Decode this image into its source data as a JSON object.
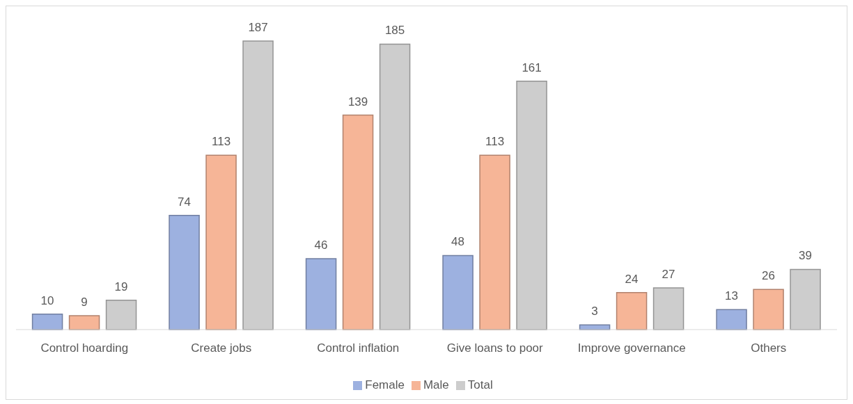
{
  "chart_data": {
    "type": "bar",
    "categories": [
      "Control hoarding",
      "Create jobs",
      "Control inflation",
      "Give loans to poor",
      "Improve governance",
      "Others"
    ],
    "series": [
      {
        "name": "Female",
        "color": "#9db1e0",
        "values": [
          10,
          74,
          46,
          48,
          3,
          13
        ]
      },
      {
        "name": "Male",
        "color": "#f6b597",
        "values": [
          9,
          113,
          139,
          113,
          24,
          26
        ]
      },
      {
        "name": "Total",
        "color": "#cdcdcd",
        "values": [
          19,
          187,
          185,
          161,
          27,
          39
        ]
      }
    ],
    "data_labels": true,
    "legend": "bottom",
    "grid": false
  }
}
